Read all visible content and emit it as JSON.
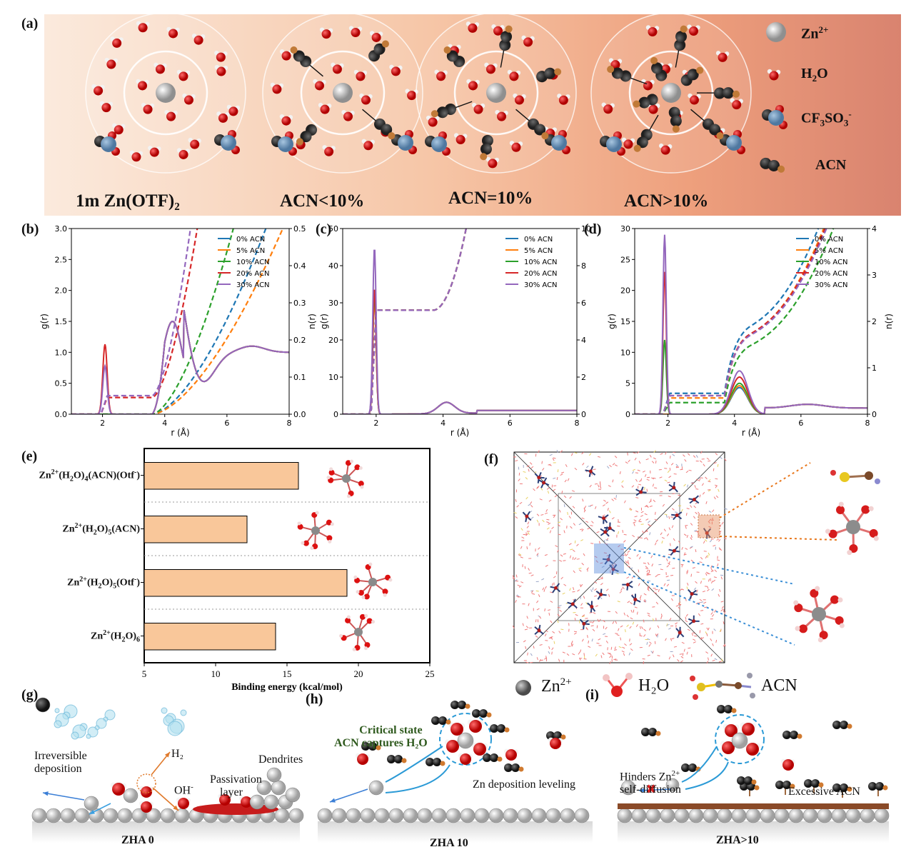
{
  "panel_labels": {
    "a": "(a)",
    "b": "(b)",
    "c": "(c)",
    "d": "(d)",
    "e": "(e)",
    "f": "(f)",
    "g": "(g)",
    "h": "(h)",
    "i": "(i)"
  },
  "panel_a": {
    "captions": [
      "1m Zn(OTF)₂",
      "ACN<10%",
      "ACN=10%",
      "ACN>10%"
    ],
    "legend": [
      {
        "base": "Zn",
        "sup": "2+",
        "sub": ""
      },
      {
        "base": "H",
        "sub": "2",
        "rest": "O"
      },
      {
        "base": "CF",
        "sub": "3",
        "rest": "SO",
        "sub2": "3",
        "sup": "-"
      },
      {
        "base": "ACN"
      }
    ],
    "legend_text": {
      "zn": "Zn",
      "zn_sup": "2+",
      "h2o_h": "H",
      "h2o_sub": "2",
      "h2o_o": "O",
      "cf": "CF",
      "cf_sub": "3",
      "cf_so": "SO",
      "cf_sub2": "3",
      "cf_sup": "-",
      "acn": "ACN"
    }
  },
  "chart_data": [
    {
      "id": "b",
      "type": "line",
      "xlabel": "r (Å)",
      "ylabel": "g(r)",
      "y2label": "n(r)",
      "xlim": [
        1,
        8
      ],
      "ylim": [
        0,
        3.0
      ],
      "y2lim": [
        0,
        0.5
      ],
      "xticks": [
        2,
        4,
        6,
        8
      ],
      "yticks": [
        0.0,
        0.5,
        1.0,
        1.5,
        2.0,
        2.5,
        3.0
      ],
      "y2ticks": [
        0.0,
        0.1,
        0.2,
        0.3,
        0.4,
        0.5
      ],
      "legend": [
        "0% ACN",
        "5% ACN",
        "10% ACN",
        "20% ACN",
        "30% ACN"
      ],
      "legend_position": "top-right"
    },
    {
      "id": "c",
      "type": "line",
      "xlabel": "r (Å)",
      "ylabel": "g(r)",
      "y2label": "n(r)",
      "xlim": [
        1,
        8
      ],
      "ylim": [
        0,
        50
      ],
      "y2lim": [
        0,
        10
      ],
      "xticks": [
        2,
        4,
        6,
        8
      ],
      "yticks": [
        0,
        10,
        20,
        30,
        40,
        50
      ],
      "y2ticks": [
        0,
        2,
        4,
        6,
        8,
        10
      ],
      "legend": [
        "0% ACN",
        "5% ACN",
        "10% ACN",
        "20% ACN",
        "30% ACN"
      ],
      "legend_position": "top-right"
    },
    {
      "id": "d",
      "type": "line",
      "xlabel": "r (Å)",
      "ylabel": "g(r)",
      "y2label": "n(r)",
      "xlim": [
        1,
        8
      ],
      "ylim": [
        0,
        30
      ],
      "y2lim": [
        0,
        4
      ],
      "xticks": [
        2,
        4,
        6,
        8
      ],
      "yticks": [
        0,
        5,
        10,
        15,
        20,
        25,
        30
      ],
      "y2ticks": [
        0,
        1,
        2,
        3,
        4
      ],
      "legend": [
        "0% ACN",
        "5% ACN",
        "10% ACN",
        "20% ACN",
        "30% ACN"
      ],
      "legend_position": "top-right"
    },
    {
      "id": "e",
      "type": "bar",
      "orientation": "horizontal",
      "categories": [
        "Zn(H2O)4(ACN)(Otf)",
        "Zn(H2O)5(ACN)",
        "Zn(H2O)5(Otf)",
        "Zn(H2O)6"
      ],
      "values": [
        15.8,
        12.2,
        19.2,
        14.2
      ],
      "xlabel": "Binding energy (kcal/mol)",
      "xlim": [
        5,
        25
      ],
      "xticks": [
        5,
        10,
        15,
        20,
        25
      ]
    }
  ],
  "series_colors": [
    "#1f77b4",
    "#ff7f0e",
    "#2ca02c",
    "#d62728",
    "#9467bd"
  ],
  "panel_e_labels": [
    {
      "a": "Zn",
      "s1": "2+",
      "b": "(H",
      "s2": "2",
      "c": "O)",
      "s3": "4",
      "d": "(ACN)(Otf",
      "s4": "-",
      "e": ")"
    },
    {
      "a": "Zn",
      "s1": "2+",
      "b": "(H",
      "s2": "2",
      "c": "O)",
      "s3": "5",
      "d": "(ACN)",
      "s4": "",
      "e": ""
    },
    {
      "a": "Zn",
      "s1": "2+",
      "b": "(H",
      "s2": "2",
      "c": "O)",
      "s3": "5",
      "d": "(Otf",
      "s4": "-",
      "e": ")"
    },
    {
      "a": "Zn",
      "s1": "2+",
      "b": "(H",
      "s2": "2",
      "c": "O)",
      "s3": "6",
      "d": "",
      "s4": "",
      "e": ""
    }
  ],
  "panel_f_legend": {
    "zn": "Zn",
    "zn_sup": "2+",
    "h2o": "H₂O",
    "acn": "ACN"
  },
  "panel_g": {
    "stage": "ZHA 0",
    "irreversible": "Irreversible",
    "deposition": "deposition",
    "h2": "H₂",
    "oh": "OH",
    "oh_sup": "-",
    "passivation": "Passivation",
    "layer": "layer",
    "dendrites": "Dendrites"
  },
  "panel_h": {
    "stage": "ZHA 10",
    "critical1": "Critical state",
    "critical2": "ACN captures H₂O",
    "leveling": "Zn deposition leveling"
  },
  "panel_i": {
    "stage": "ZHA>10",
    "hinders1": "Hinders Zn",
    "hinders_sup": "2+",
    "hinders2": "self-diffusion",
    "excessive": "Excessive ACN"
  }
}
